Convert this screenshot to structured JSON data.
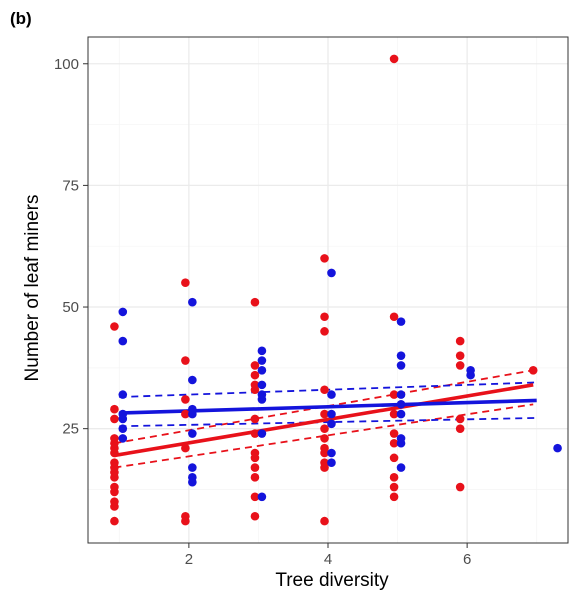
{
  "chart_data": {
    "type": "scatter",
    "panel_label": "(b)",
    "xlabel": "Tree diversity",
    "ylabel": "Number of leaf miners",
    "xlim": [
      0.55,
      7.45
    ],
    "ylim": [
      1.5,
      105.5
    ],
    "x_ticks": [
      2,
      4,
      6
    ],
    "y_ticks": [
      25,
      50,
      75,
      100
    ],
    "grid": true,
    "legend": "none",
    "colors": {
      "red": "#e8111a",
      "blue": "#1414dc",
      "grid": "#ebebeb",
      "grid_minor": "#f4f4f4",
      "border": "#333333"
    },
    "series": [
      {
        "color": "red",
        "points": [
          [
            0.93,
            6
          ],
          [
            0.93,
            9
          ],
          [
            0.93,
            10
          ],
          [
            0.93,
            12
          ],
          [
            0.93,
            13
          ],
          [
            0.93,
            15
          ],
          [
            0.93,
            16
          ],
          [
            0.93,
            17
          ],
          [
            0.93,
            18
          ],
          [
            0.93,
            20
          ],
          [
            0.93,
            21
          ],
          [
            0.93,
            22
          ],
          [
            0.93,
            23
          ],
          [
            0.93,
            27
          ],
          [
            0.93,
            29
          ],
          [
            0.93,
            46
          ],
          [
            1.95,
            6
          ],
          [
            1.95,
            7
          ],
          [
            1.95,
            21
          ],
          [
            1.95,
            28
          ],
          [
            1.95,
            31
          ],
          [
            1.95,
            39
          ],
          [
            1.95,
            55
          ],
          [
            2.95,
            7
          ],
          [
            2.95,
            11
          ],
          [
            2.95,
            15
          ],
          [
            2.95,
            17
          ],
          [
            2.95,
            19
          ],
          [
            2.95,
            20
          ],
          [
            2.95,
            24
          ],
          [
            2.95,
            27
          ],
          [
            2.95,
            33
          ],
          [
            2.95,
            34
          ],
          [
            2.95,
            36
          ],
          [
            2.95,
            38
          ],
          [
            2.95,
            51
          ],
          [
            3.95,
            6
          ],
          [
            3.95,
            17
          ],
          [
            3.95,
            18
          ],
          [
            3.95,
            20
          ],
          [
            3.95,
            21
          ],
          [
            3.95,
            23
          ],
          [
            3.95,
            25
          ],
          [
            3.95,
            28
          ],
          [
            3.95,
            33
          ],
          [
            3.95,
            45
          ],
          [
            3.95,
            48
          ],
          [
            3.95,
            60
          ],
          [
            4.95,
            11
          ],
          [
            4.95,
            13
          ],
          [
            4.95,
            15
          ],
          [
            4.95,
            19
          ],
          [
            4.95,
            22
          ],
          [
            4.95,
            24
          ],
          [
            4.95,
            28
          ],
          [
            4.95,
            32
          ],
          [
            4.95,
            48
          ],
          [
            4.95,
            101
          ],
          [
            5.9,
            13
          ],
          [
            5.9,
            25
          ],
          [
            5.9,
            27
          ],
          [
            5.9,
            38
          ],
          [
            5.9,
            40
          ],
          [
            5.9,
            43
          ],
          [
            6.95,
            37
          ]
        ]
      },
      {
        "color": "blue",
        "points": [
          [
            1.05,
            23
          ],
          [
            1.05,
            25
          ],
          [
            1.05,
            27
          ],
          [
            1.05,
            28
          ],
          [
            1.05,
            32
          ],
          [
            1.05,
            43
          ],
          [
            1.05,
            49
          ],
          [
            2.05,
            14
          ],
          [
            2.05,
            15
          ],
          [
            2.05,
            17
          ],
          [
            2.05,
            24
          ],
          [
            2.05,
            28
          ],
          [
            2.05,
            29
          ],
          [
            2.05,
            35
          ],
          [
            2.05,
            51
          ],
          [
            3.05,
            11
          ],
          [
            3.05,
            24
          ],
          [
            3.05,
            31
          ],
          [
            3.05,
            32
          ],
          [
            3.05,
            34
          ],
          [
            3.05,
            37
          ],
          [
            3.05,
            39
          ],
          [
            3.05,
            41
          ],
          [
            4.05,
            18
          ],
          [
            4.05,
            20
          ],
          [
            4.05,
            26
          ],
          [
            4.05,
            28
          ],
          [
            4.05,
            32
          ],
          [
            4.05,
            57
          ],
          [
            5.05,
            17
          ],
          [
            5.05,
            22
          ],
          [
            5.05,
            23
          ],
          [
            5.05,
            28
          ],
          [
            5.05,
            30
          ],
          [
            5.05,
            32
          ],
          [
            5.05,
            38
          ],
          [
            5.05,
            40
          ],
          [
            5.05,
            47
          ],
          [
            6.05,
            36
          ],
          [
            6.05,
            37
          ],
          [
            7.3,
            21
          ]
        ]
      }
    ],
    "fits": [
      {
        "color": "red",
        "x": [
          0.93,
          6.95
        ],
        "fit": [
          19.5,
          34.0
        ],
        "ci_lower": [
          17.0,
          30.0
        ],
        "ci_upper": [
          22.0,
          37.0
        ]
      },
      {
        "color": "blue",
        "x": [
          1.0,
          7.0
        ],
        "fit": [
          28.2,
          30.8
        ],
        "ci_lower": [
          25.5,
          27.2
        ],
        "ci_upper": [
          31.5,
          34.5
        ]
      }
    ]
  }
}
